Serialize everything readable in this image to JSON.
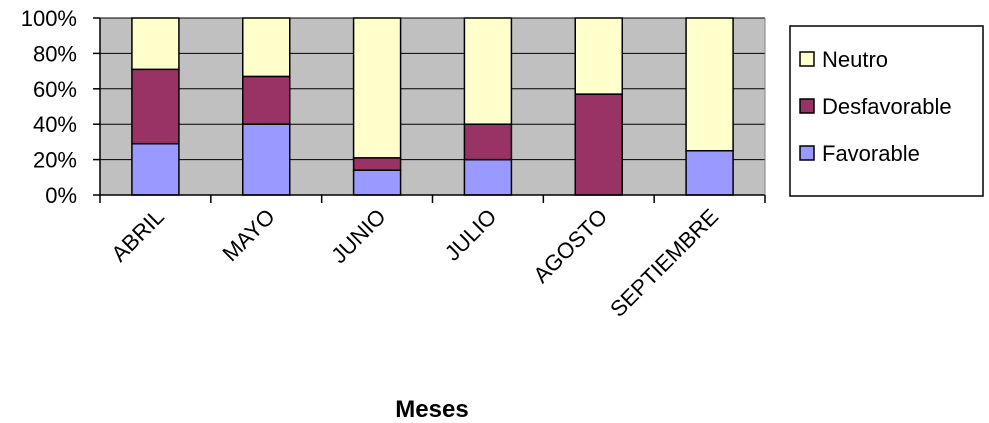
{
  "chart_data": {
    "type": "bar",
    "stacked": true,
    "percent_stacked": true,
    "categories": [
      "ABRIL",
      "MAYO",
      "JUNIO",
      "JULIO",
      "AGOSTO",
      "SEPTIEMBRE"
    ],
    "series": [
      {
        "name": "Favorable",
        "values": [
          29,
          40,
          14,
          20,
          0,
          25
        ],
        "color": "#9999ff"
      },
      {
        "name": "Desfavorable",
        "values": [
          42,
          27,
          7,
          20,
          57,
          0
        ],
        "color": "#993366"
      },
      {
        "name": "Neutro",
        "values": [
          29,
          33,
          79,
          60,
          43,
          75
        ],
        "color": "#ffffcc"
      }
    ],
    "title": "",
    "xlabel": "Meses",
    "ylabel": "",
    "ylim": [
      0,
      100
    ],
    "yticks": [
      "0%",
      "20%",
      "40%",
      "60%",
      "80%",
      "100%"
    ],
    "grid": true,
    "plot_background": "#c0c0c0",
    "legend_position": "right",
    "legend_order": [
      "Neutro",
      "Desfavorable",
      "Favorable"
    ]
  }
}
